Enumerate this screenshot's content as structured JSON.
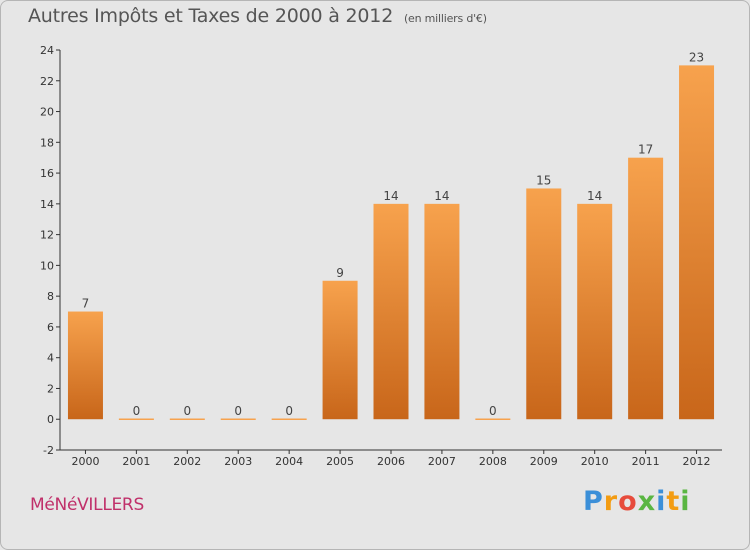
{
  "chart_data": {
    "type": "bar",
    "title": "Autres Impôts et Taxes de 2000 à 2012",
    "unit": "(en milliers d'€)",
    "categories": [
      "2000",
      "2001",
      "2002",
      "2003",
      "2004",
      "2005",
      "2006",
      "2007",
      "2008",
      "2009",
      "2010",
      "2011",
      "2012"
    ],
    "values": [
      7,
      0,
      0,
      0,
      0,
      9,
      14,
      14,
      0,
      15,
      14,
      17,
      23
    ],
    "ylim": [
      -2,
      24
    ],
    "yticks": [
      -2,
      0,
      2,
      4,
      6,
      8,
      10,
      12,
      14,
      16,
      18,
      20,
      22,
      24
    ],
    "grid": false,
    "colors": {
      "bar_top": "#f7a24d",
      "bar_bottom": "#c8661a",
      "axis": "#333333"
    }
  },
  "footer": {
    "city": "MéNéVILLERS",
    "brand_letters": [
      "P",
      "r",
      "o",
      "x",
      "i",
      "t",
      "i"
    ],
    "brand_colors": [
      "#3b8fd8",
      "#f39c12",
      "#e74c3c",
      "#5ab642",
      "#3b8fd8",
      "#f39c12",
      "#5ab642"
    ]
  }
}
